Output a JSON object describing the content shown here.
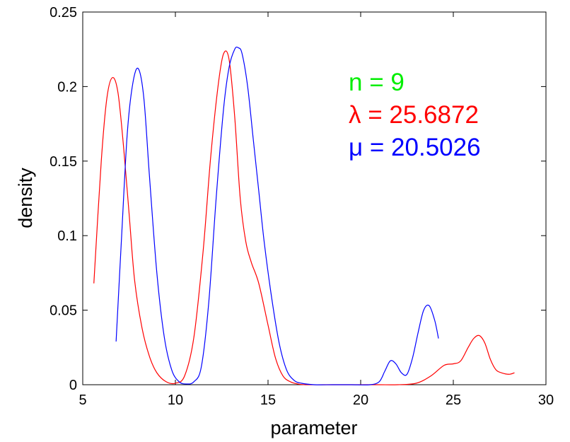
{
  "chart_data": {
    "type": "line",
    "title": "",
    "xlabel": "parameter",
    "ylabel": "density",
    "xlim": [
      5,
      30
    ],
    "ylim": [
      0,
      0.25
    ],
    "xticks": [
      5,
      10,
      15,
      20,
      25,
      30
    ],
    "yticks": [
      0,
      0.05,
      0.1,
      0.15,
      0.2,
      0.25
    ],
    "xtick_labels": [
      "5",
      "10",
      "15",
      "20",
      "25",
      "30"
    ],
    "ytick_labels": [
      "0",
      "0.05",
      "0.1",
      "0.15",
      "0.2",
      "0.25"
    ],
    "grid": false,
    "annotations": [
      {
        "text": "n = 9",
        "color": "#00ee00"
      },
      {
        "text": "λ = 25.6872",
        "color": "#ff0000"
      },
      {
        "text": "μ = 20.5026",
        "color": "#0000ff"
      }
    ],
    "series": [
      {
        "color": "#ff0000",
        "x": [
          5.6,
          6.0,
          6.3,
          6.6,
          6.9,
          7.2,
          7.5,
          7.8,
          8.2,
          8.6,
          9.0,
          9.5,
          10.0,
          10.5,
          11.0,
          11.5,
          11.9,
          12.3,
          12.6,
          12.9,
          13.2,
          13.5,
          13.8,
          14.1,
          14.5,
          15.0,
          15.4,
          15.8,
          16.2,
          16.6,
          17.0,
          18.0,
          19.0,
          20.0,
          21.0,
          22.0,
          23.0,
          23.8,
          24.5,
          25.0,
          25.4,
          25.8,
          26.1,
          26.4,
          26.7,
          27.0,
          27.3,
          27.6,
          28.0,
          28.3
        ],
        "y": [
          0.068,
          0.15,
          0.192,
          0.206,
          0.196,
          0.16,
          0.115,
          0.07,
          0.038,
          0.019,
          0.008,
          0.002,
          0.001,
          0.006,
          0.032,
          0.09,
          0.152,
          0.2,
          0.222,
          0.218,
          0.18,
          0.125,
          0.096,
          0.082,
          0.068,
          0.04,
          0.018,
          0.006,
          0.002,
          0.0005,
          0.0,
          0.0,
          0.0,
          0.0,
          0.0,
          0.0,
          0.001,
          0.006,
          0.013,
          0.014,
          0.016,
          0.025,
          0.031,
          0.033,
          0.028,
          0.017,
          0.01,
          0.008,
          0.007,
          0.008
        ]
      },
      {
        "color": "#0000ff",
        "x": [
          6.8,
          7.1,
          7.4,
          7.7,
          8.0,
          8.3,
          8.6,
          9.0,
          9.4,
          9.8,
          10.2,
          10.6,
          11.0,
          11.4,
          11.8,
          12.2,
          12.6,
          12.9,
          13.2,
          13.4,
          13.6,
          13.9,
          14.2,
          14.5,
          14.8,
          15.2,
          15.6,
          16.0,
          16.4,
          16.8,
          17.5,
          18.5,
          19.5,
          20.5,
          21.0,
          21.3,
          21.6,
          21.9,
          22.2,
          22.5,
          22.8,
          23.1,
          23.4,
          23.7,
          24.0,
          24.2
        ],
        "y": [
          0.029,
          0.1,
          0.168,
          0.202,
          0.212,
          0.192,
          0.14,
          0.075,
          0.032,
          0.01,
          0.002,
          0.0005,
          0.002,
          0.012,
          0.055,
          0.125,
          0.185,
          0.213,
          0.225,
          0.226,
          0.222,
          0.2,
          0.165,
          0.13,
          0.095,
          0.058,
          0.028,
          0.01,
          0.003,
          0.001,
          0.0,
          0.0,
          0.0,
          0.0,
          0.002,
          0.009,
          0.016,
          0.014,
          0.008,
          0.007,
          0.018,
          0.035,
          0.05,
          0.053,
          0.043,
          0.031
        ]
      }
    ]
  }
}
